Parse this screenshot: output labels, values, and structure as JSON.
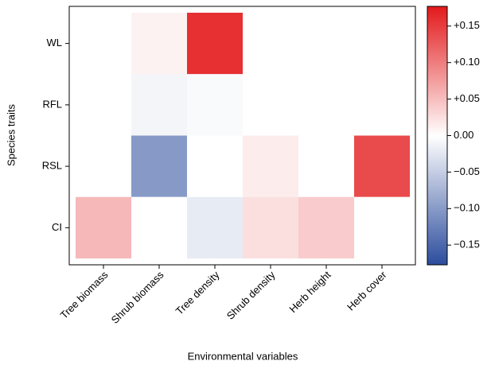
{
  "chart_data": {
    "type": "heatmap",
    "x_label": "Environmental variables",
    "y_label": "Species traits",
    "x_categories": [
      "Tree biomass",
      "Shrub biomass",
      "Tree density",
      "Shrub density",
      "Herb height",
      "Herb cover"
    ],
    "y_categories": [
      "WL",
      "RFL",
      "RSL",
      "CI"
    ],
    "values": [
      [
        0,
        0.01,
        0.16,
        0,
        0,
        0
      ],
      [
        0,
        -0.01,
        -0.005,
        0,
        0,
        0
      ],
      [
        0,
        -0.1,
        0,
        0.015,
        0,
        0.14
      ],
      [
        0.055,
        0,
        -0.02,
        0.025,
        0.04,
        0
      ]
    ],
    "colorscale": [
      "#2b4c9c",
      "#ffffff",
      "#e31a1c"
    ],
    "clim": [
      -0.177,
      0.177
    ],
    "cticks": [
      {
        "value": 0.15,
        "label": "+0.15"
      },
      {
        "value": 0.1,
        "label": "+0.10"
      },
      {
        "value": 0.05,
        "label": "+0.05"
      },
      {
        "value": 0,
        "label": "0.00"
      },
      {
        "value": -0.05,
        "label": "−0.05"
      },
      {
        "value": -0.1,
        "label": "−0.10"
      },
      {
        "value": -0.15,
        "label": "−0.15"
      }
    ]
  }
}
